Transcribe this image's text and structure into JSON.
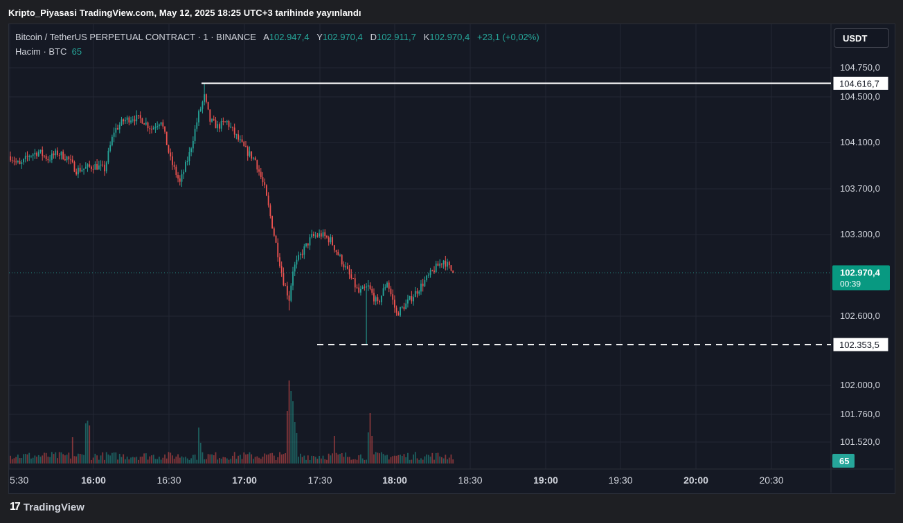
{
  "header": {
    "published": "Kripto_Piyasasi TradingView.com, May 12, 2025 18:25 UTC+3 tarihinde yayınlandı"
  },
  "legend": {
    "symbol": "Bitcoin / TetherUS PERPETUAL CONTRACT · 1 · BINANCE",
    "open_label": "A",
    "open": "102.947,4",
    "high_label": "Y",
    "high": "102.970,4",
    "low_label": "D",
    "low": "102.911,7",
    "close_label": "K",
    "close": "102.970,4",
    "change": "+23,1 (+0,02%)",
    "volume_label": "Hacim · BTC",
    "volume": "65"
  },
  "toolbar": {
    "currency": "USDT"
  },
  "footer": {
    "brand": "TradingView",
    "brand_icon": "tradingview-logo-icon"
  },
  "colors": {
    "up": "#26a69a",
    "down": "#ef5350",
    "background": "#151924",
    "grid": "#232734",
    "text": "#d1d4dc"
  },
  "chart_data": {
    "type": "candlestick",
    "price_ticks": [
      "104.750,0",
      "104.500,0",
      "104.100,0",
      "103.700,0",
      "103.300,0",
      "102.600,0",
      "102.000,0",
      "101.760,0",
      "101.520,0"
    ],
    "time_ticks": [
      {
        "label": "5:30",
        "bold": false
      },
      {
        "label": "16:00",
        "bold": true
      },
      {
        "label": "16:30",
        "bold": false
      },
      {
        "label": "17:00",
        "bold": true
      },
      {
        "label": "17:30",
        "bold": false
      },
      {
        "label": "18:00",
        "bold": true
      },
      {
        "label": "18:30",
        "bold": false
      },
      {
        "label": "19:00",
        "bold": true
      },
      {
        "label": "19:30",
        "bold": false
      },
      {
        "label": "20:00",
        "bold": true
      },
      {
        "label": "20:30",
        "bold": false
      }
    ],
    "high_line": {
      "value": 104616.7,
      "label": "104.616,7"
    },
    "low_line": {
      "value": 102353.5,
      "label": "102.353,5"
    },
    "current": {
      "value": 102970.4,
      "label": "102.970,4",
      "countdown": "00:39"
    },
    "volume_badge": "65",
    "path": [
      [
        0,
        103980
      ],
      [
        5,
        103900
      ],
      [
        10,
        103990
      ],
      [
        15,
        104020
      ],
      [
        20,
        103960
      ],
      [
        25,
        104010
      ],
      [
        30,
        103970
      ],
      [
        35,
        103860
      ],
      [
        40,
        103880
      ],
      [
        45,
        103900
      ],
      [
        50,
        103870
      ],
      [
        55,
        104200
      ],
      [
        60,
        104290
      ],
      [
        65,
        104320
      ],
      [
        70,
        104300
      ],
      [
        75,
        104220
      ],
      [
        80,
        104300
      ],
      [
        85,
        103950
      ],
      [
        90,
        103750
      ],
      [
        95,
        104000
      ],
      [
        100,
        104350
      ],
      [
        103,
        104500
      ],
      [
        106,
        104290
      ],
      [
        110,
        104240
      ],
      [
        115,
        104280
      ],
      [
        120,
        104150
      ],
      [
        125,
        104030
      ],
      [
        130,
        103950
      ],
      [
        135,
        103700
      ],
      [
        140,
        103300
      ],
      [
        145,
        102900
      ],
      [
        148,
        102750
      ],
      [
        150,
        103000
      ],
      [
        155,
        103150
      ],
      [
        160,
        103280
      ],
      [
        165,
        103300
      ],
      [
        170,
        103250
      ],
      [
        175,
        103100
      ],
      [
        180,
        102950
      ],
      [
        185,
        102800
      ],
      [
        190,
        102850
      ],
      [
        195,
        102700
      ],
      [
        200,
        102900
      ],
      [
        205,
        102620
      ],
      [
        210,
        102700
      ],
      [
        215,
        102800
      ],
      [
        220,
        102900
      ],
      [
        225,
        103000
      ],
      [
        230,
        103080
      ],
      [
        235,
        102970
      ]
    ],
    "volume_spikes": {
      "33": 38,
      "40": 58,
      "41": 62,
      "42": 55,
      "100": 52,
      "101": 30,
      "147": 76,
      "148": 120,
      "149": 105,
      "150": 90,
      "151": 60,
      "152": 44,
      "172": 40,
      "190": 45,
      "191": 73,
      "192": 40
    },
    "ylim": [
      101400,
      104850
    ]
  }
}
